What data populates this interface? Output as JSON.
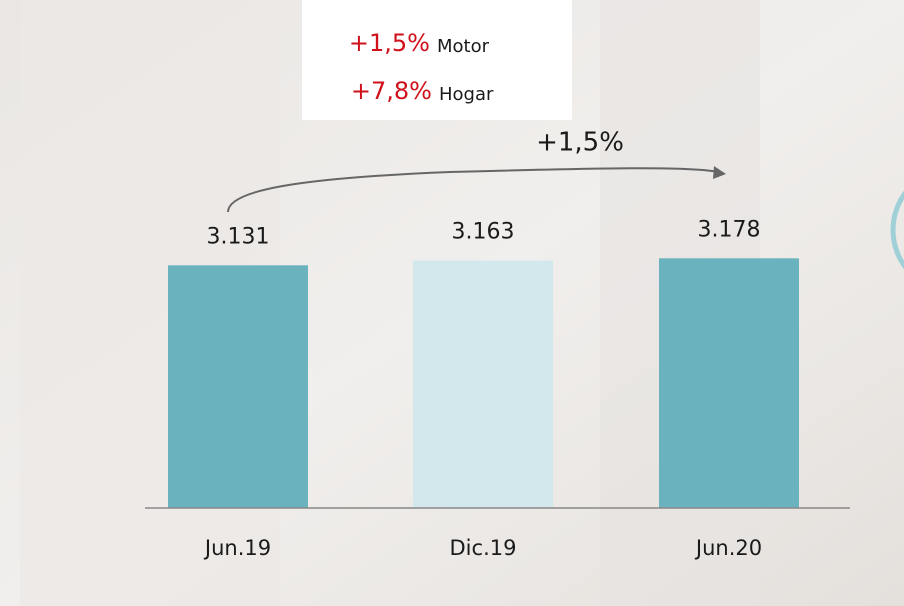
{
  "chart_data": {
    "type": "bar",
    "categories": [
      "Jun.19",
      "Dic.19",
      "Jun.20"
    ],
    "values": [
      3131,
      3163,
      3178
    ],
    "value_labels": [
      "3.131",
      "3.163",
      "3.178"
    ],
    "colors": [
      "#6ab2bd",
      "#d3e8ec",
      "#6ab2bd"
    ],
    "ylim": [
      1500,
      4000
    ],
    "annotations": {
      "growth": "+1,5%",
      "breakdown": [
        {
          "change": "+1,5%",
          "label": "Motor"
        },
        {
          "change": "+7,8%",
          "label": "Hogar"
        }
      ]
    }
  }
}
